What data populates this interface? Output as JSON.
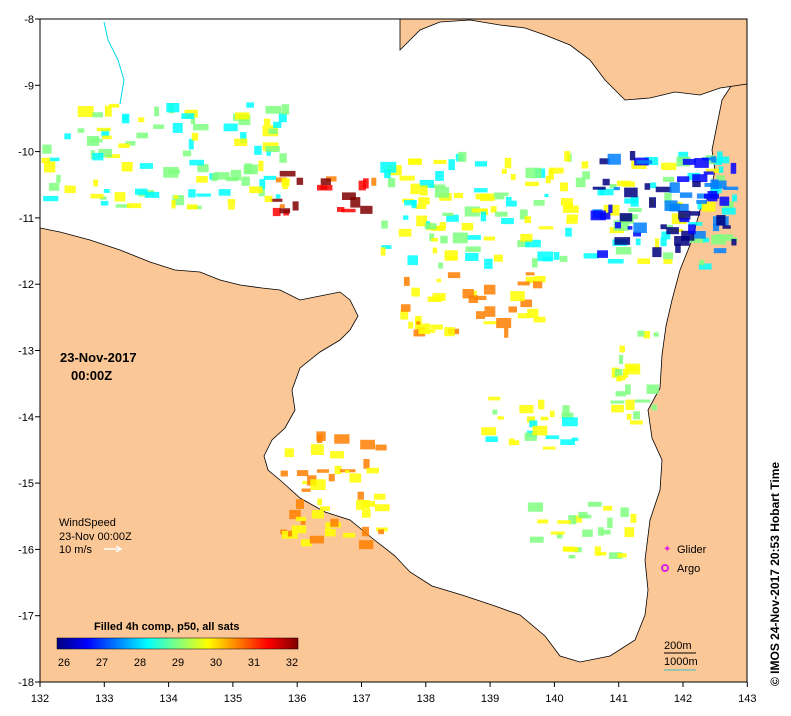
{
  "map": {
    "date_line1": "23-Nov-2017",
    "date_line2": "00:00Z",
    "wind": {
      "title": "WindSpeed",
      "time": "23-Nov 00:00Z",
      "speed": "10 m/s"
    },
    "legend": {
      "title": "Filled 4h comp, p50, all sats",
      "ticks": [
        "26",
        "27",
        "28",
        "29",
        "30",
        "31",
        "32"
      ],
      "colors": [
        "#00007f",
        "#0000ff",
        "#007fff",
        "#00ffff",
        "#7fff7f",
        "#ffff00",
        "#ff7f00",
        "#ff0000",
        "#7f0000"
      ]
    },
    "markers": {
      "glider": "Glider",
      "argo": "Argo"
    },
    "scale": {
      "contour1": "200m",
      "contour2": "1000m"
    },
    "credit": "© IMOS 24-Nov-2017 20:53 Hobart Time",
    "land_color": "#fbc796",
    "axes": {
      "lon_labels": [
        "132",
        "133",
        "134",
        "135",
        "136",
        "137",
        "138",
        "139",
        "140",
        "141",
        "142",
        "143"
      ],
      "lat_labels": [
        "-8",
        "-9",
        "-10",
        "-11",
        "-12",
        "-13",
        "-14",
        "-15",
        "-16",
        "-17",
        "-18"
      ]
    }
  }
}
